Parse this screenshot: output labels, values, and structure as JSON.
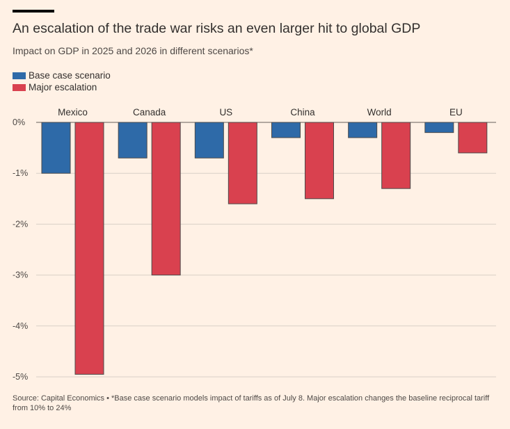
{
  "header": {
    "title": "An escalation of the trade war risks an even larger hit to global GDP",
    "subtitle": "Impact on GDP in 2025 and 2026 in different scenarios*"
  },
  "legend": {
    "items": [
      {
        "label": "Base case scenario",
        "color": "#2e6aa8"
      },
      {
        "label": "Major escalation",
        "color": "#d9414f"
      }
    ]
  },
  "footer": {
    "source": "Source: Capital Economics • *Base case scenario models impact of tariffs as of July 8. Major escalation changes the baseline reciprocal tariff from 10% to 24%"
  },
  "chart_data": {
    "type": "bar",
    "title": "An escalation of the trade war risks an even larger hit to global GDP",
    "subtitle": "Impact on GDP in 2025 and 2026 in different scenarios*",
    "categories": [
      "Mexico",
      "Canada",
      "US",
      "China",
      "World",
      "EU"
    ],
    "series": [
      {
        "name": "Base case scenario",
        "color": "#2e6aa8",
        "values": [
          -1.0,
          -0.7,
          -0.7,
          -0.3,
          -0.3,
          -0.2
        ]
      },
      {
        "name": "Major escalation",
        "color": "#d9414f",
        "values": [
          -4.95,
          -3.0,
          -1.6,
          -1.5,
          -1.3,
          -0.6
        ]
      }
    ],
    "ylim": [
      -5,
      0
    ],
    "yticks": [
      0,
      -1,
      -2,
      -3,
      -4,
      -5
    ],
    "ytick_labels": [
      "0%",
      "-1%",
      "-2%",
      "-3%",
      "-4%",
      "-5%"
    ],
    "xlabel": "",
    "ylabel": "",
    "grid": true,
    "legend_position": "top-left",
    "category_labels_position": "top"
  }
}
